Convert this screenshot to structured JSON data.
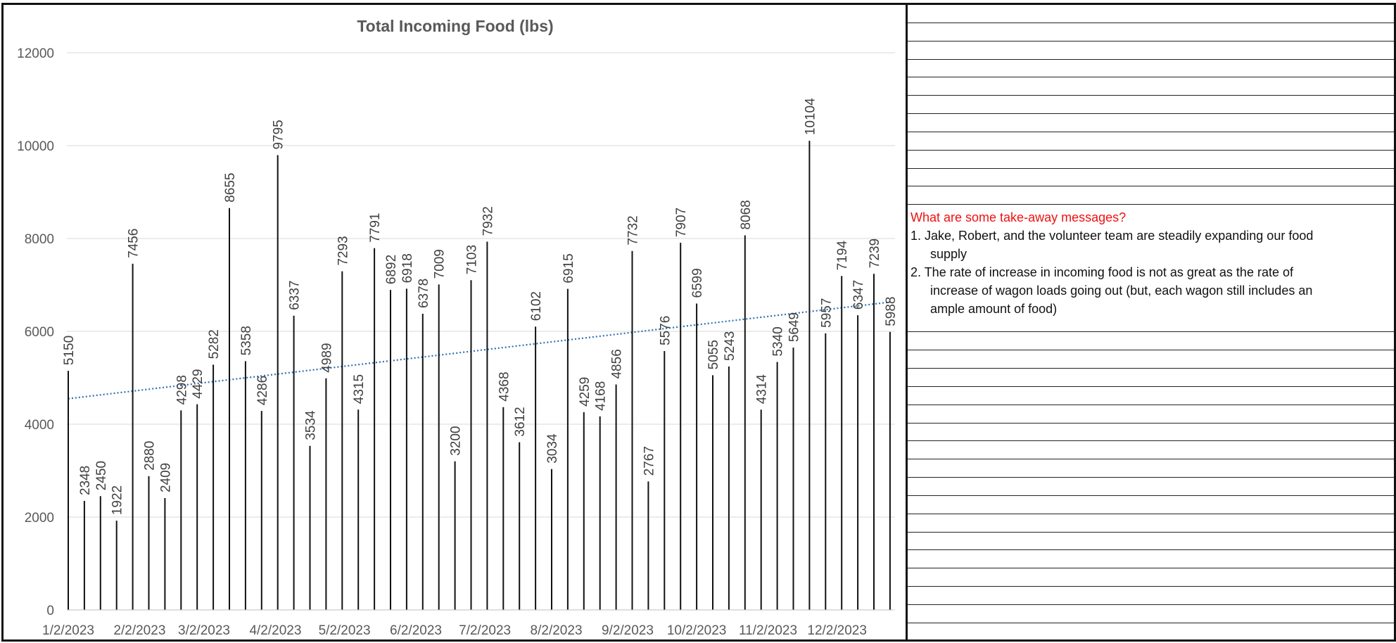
{
  "chart_data": {
    "type": "bar",
    "title": "Total Incoming Food (lbs)",
    "xlabel": "",
    "ylabel": "",
    "ylim": [
      0,
      12000
    ],
    "yticks": [
      0,
      2000,
      4000,
      6000,
      8000,
      10000,
      12000
    ],
    "grid": true,
    "x_dates": [
      "1/2/2023",
      "1/9/2023",
      "1/16/2023",
      "1/23/2023",
      "1/30/2023",
      "2/6/2023",
      "2/13/2023",
      "2/20/2023",
      "2/27/2023",
      "3/6/2023",
      "3/13/2023",
      "3/20/2023",
      "3/27/2023",
      "4/3/2023",
      "4/10/2023",
      "4/17/2023",
      "4/24/2023",
      "5/1/2023",
      "5/8/2023",
      "5/15/2023",
      "5/22/2023",
      "5/29/2023",
      "6/5/2023",
      "6/12/2023",
      "6/19/2023",
      "6/26/2023",
      "7/3/2023",
      "7/10/2023",
      "7/17/2023",
      "7/24/2023",
      "7/31/2023",
      "8/7/2023",
      "8/14/2023",
      "8/21/2023",
      "8/28/2023",
      "9/4/2023",
      "9/11/2023",
      "9/18/2023",
      "9/25/2023",
      "10/2/2023",
      "10/9/2023",
      "10/16/2023",
      "10/23/2023",
      "10/30/2023",
      "11/6/2023",
      "11/13/2023",
      "11/20/2023",
      "11/27/2023",
      "12/4/2023",
      "12/11/2023",
      "12/18/2023",
      "12/25/2023"
    ],
    "values": [
      5150,
      2348,
      2450,
      1922,
      7456,
      2880,
      2409,
      4298,
      4429,
      5282,
      8655,
      5358,
      4286,
      9795,
      6337,
      3534,
      4989,
      7293,
      4315,
      7791,
      6892,
      6918,
      6378,
      7009,
      3200,
      7103,
      7932,
      4368,
      3612,
      6102,
      3034,
      6915,
      4259,
      4168,
      4856,
      7732,
      2767,
      5576,
      7907,
      6599,
      5055,
      5243,
      8068,
      4314,
      5340,
      5649,
      10104,
      5957,
      7194,
      6347,
      7239,
      5988
    ],
    "x_tick_labels": [
      "1/2/2023",
      "2/2/2023",
      "3/2/2023",
      "4/2/2023",
      "5/2/2023",
      "6/2/2023",
      "7/2/2023",
      "8/2/2023",
      "9/2/2023",
      "10/2/2023",
      "11/2/2023",
      "12/2/2023"
    ],
    "trendline": {
      "type": "linear",
      "style": "dotted",
      "color": "#2f6fb5",
      "start": 4550,
      "end": 6630
    },
    "bar_color": "#111111",
    "grid_color": "#d9d9d9"
  },
  "notes": {
    "heading": "What are some take-away messages?",
    "items": [
      {
        "first": "1. Jake, Robert, and the volunteer team are steadily expanding our food",
        "rest": [
          "supply"
        ]
      },
      {
        "first": "2. The rate of increase in incoming food is not as great as the rate of",
        "rest": [
          "increase of wagon loads going out (but, each wagon still includes an",
          "ample amount of food)"
        ]
      }
    ],
    "heading_color": "#ee1111"
  }
}
